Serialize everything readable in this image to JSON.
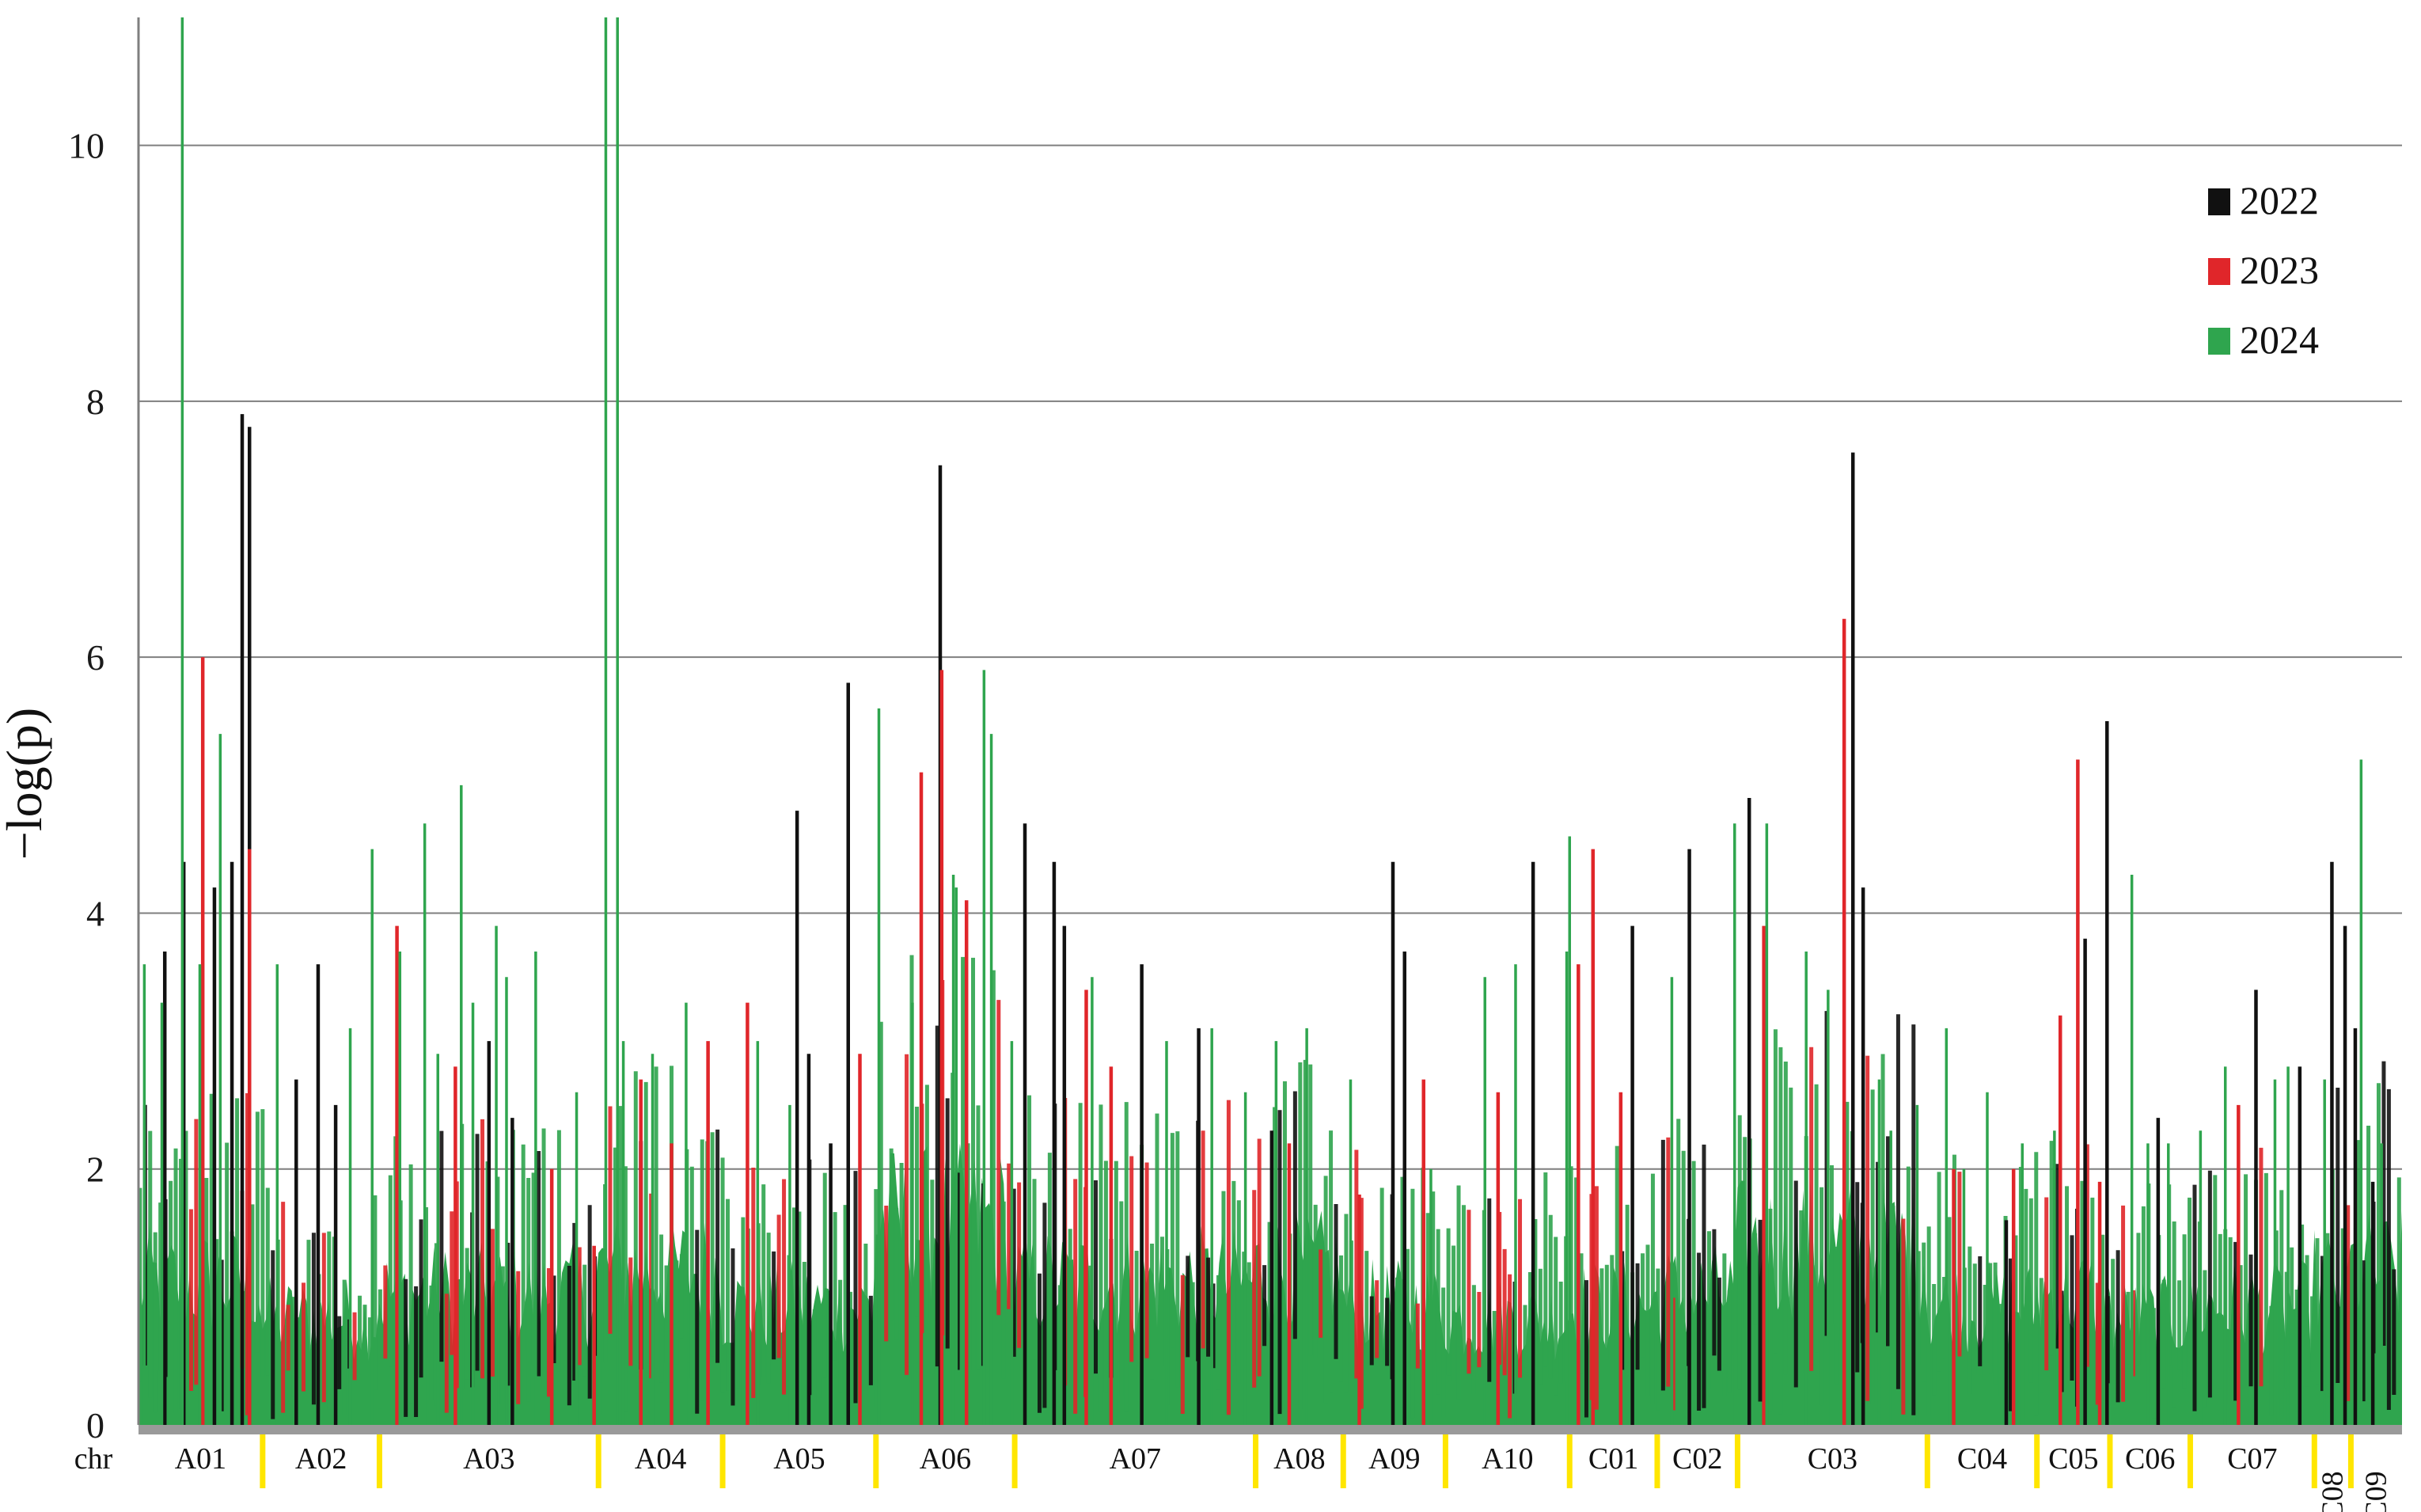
{
  "chart_data": {
    "type": "bar",
    "subtype": "manhattan",
    "title": "",
    "xlabel": "chr",
    "ylabel": "−log(p)",
    "ylim": [
      0,
      11
    ],
    "yticks": [
      0,
      2,
      4,
      6,
      8,
      10
    ],
    "grid": true,
    "legend_position": "top-right",
    "chromosomes": [
      "A01",
      "A02",
      "A03",
      "A04",
      "A05",
      "A06",
      "A07",
      "A08",
      "A09",
      "A10",
      "C01",
      "C02",
      "C03",
      "C04",
      "C05",
      "C06",
      "C07",
      "C08",
      "C09"
    ],
    "chromosome_spans": [
      {
        "chr": "A01",
        "start": 0.0,
        "end": 8.5
      },
      {
        "chr": "A02",
        "start": 8.5,
        "end": 16.5
      },
      {
        "chr": "A03",
        "start": 16.5,
        "end": 31.5
      },
      {
        "chr": "A04",
        "start": 31.5,
        "end": 40.0
      },
      {
        "chr": "A05",
        "start": 40.0,
        "end": 50.5
      },
      {
        "chr": "A06",
        "start": 50.5,
        "end": 60.0
      },
      {
        "chr": "A07",
        "start": 60.0,
        "end": 76.5
      },
      {
        "chr": "A08",
        "start": 76.5,
        "end": 82.5
      },
      {
        "chr": "A09",
        "start": 82.5,
        "end": 89.5
      },
      {
        "chr": "A10",
        "start": 89.5,
        "end": 98.0
      },
      {
        "chr": "C01",
        "start": 98.0,
        "end": 104.0
      },
      {
        "chr": "C02",
        "start": 104.0,
        "end": 109.5
      },
      {
        "chr": "C03",
        "start": 109.5,
        "end": 122.5
      },
      {
        "chr": "C04",
        "start": 122.5,
        "end": 130.0
      },
      {
        "chr": "C05",
        "start": 130.0,
        "end": 135.0
      },
      {
        "chr": "C06",
        "start": 135.0,
        "end": 140.5
      },
      {
        "chr": "C07",
        "start": 140.5,
        "end": 149.0
      },
      {
        "chr": "C08",
        "start": 149.0,
        "end": 151.5
      },
      {
        "chr": "C09",
        "start": 151.5,
        "end": 155.0
      }
    ],
    "series": [
      {
        "name": "2022",
        "color": "#111111",
        "peaks": [
          [
            1.8,
            3.7
          ],
          [
            3.1,
            4.4
          ],
          [
            5.2,
            4.2
          ],
          [
            6.4,
            4.4
          ],
          [
            7.1,
            7.9
          ],
          [
            7.6,
            7.8
          ],
          [
            10.8,
            2.7
          ],
          [
            12.3,
            3.6
          ],
          [
            13.5,
            2.5
          ],
          [
            24.0,
            3.0
          ],
          [
            25.6,
            2.4
          ],
          [
            45.1,
            4.8
          ],
          [
            45.9,
            2.9
          ],
          [
            47.4,
            2.2
          ],
          [
            48.6,
            5.8
          ],
          [
            54.9,
            7.5
          ],
          [
            60.7,
            4.7
          ],
          [
            62.7,
            4.4
          ],
          [
            63.4,
            3.9
          ],
          [
            68.7,
            3.6
          ],
          [
            72.6,
            3.1
          ],
          [
            77.6,
            2.3
          ],
          [
            85.9,
            4.4
          ],
          [
            86.7,
            3.7
          ],
          [
            95.5,
            4.4
          ],
          [
            102.3,
            3.9
          ],
          [
            106.2,
            4.5
          ],
          [
            110.3,
            4.9
          ],
          [
            117.4,
            7.6
          ],
          [
            118.1,
            4.2
          ],
          [
            127.9,
            1.6
          ],
          [
            133.3,
            3.8
          ],
          [
            134.8,
            5.5
          ],
          [
            138.3,
            2.4
          ],
          [
            145.0,
            3.4
          ],
          [
            148.0,
            2.8
          ],
          [
            150.2,
            4.4
          ],
          [
            151.1,
            3.9
          ],
          [
            151.8,
            3.1
          ],
          [
            153.0,
            1.9
          ]
        ]
      },
      {
        "name": "2023",
        "color": "#e0262a",
        "peaks": [
          [
            4.4,
            6.0
          ],
          [
            7.6,
            4.5
          ],
          [
            17.7,
            3.9
          ],
          [
            21.7,
            2.8
          ],
          [
            28.3,
            2.0
          ],
          [
            31.2,
            1.4
          ],
          [
            34.4,
            2.7
          ],
          [
            36.5,
            2.2
          ],
          [
            39.0,
            3.0
          ],
          [
            41.7,
            3.3
          ],
          [
            49.4,
            2.9
          ],
          [
            53.6,
            5.1
          ],
          [
            55.0,
            5.9
          ],
          [
            56.7,
            4.1
          ],
          [
            64.9,
            3.4
          ],
          [
            66.6,
            2.8
          ],
          [
            78.8,
            2.2
          ],
          [
            83.6,
            1.8
          ],
          [
            88.0,
            2.7
          ],
          [
            93.1,
            2.6
          ],
          [
            98.6,
            3.6
          ],
          [
            99.6,
            4.5
          ],
          [
            101.5,
            2.6
          ],
          [
            111.3,
            3.9
          ],
          [
            116.8,
            6.3
          ],
          [
            124.3,
            2.0
          ],
          [
            128.4,
            2.0
          ],
          [
            131.6,
            3.2
          ],
          [
            132.8,
            5.2
          ],
          [
            134.3,
            1.9
          ],
          [
            143.8,
            2.5
          ]
        ]
      },
      {
        "name": "2024",
        "color": "#2fa54e",
        "peaks": [
          [
            0.4,
            3.6
          ],
          [
            1.6,
            3.3
          ],
          [
            3.0,
            11.0
          ],
          [
            4.2,
            3.6
          ],
          [
            5.6,
            5.4
          ],
          [
            9.5,
            3.6
          ],
          [
            14.5,
            3.1
          ],
          [
            16.0,
            4.5
          ],
          [
            17.9,
            3.7
          ],
          [
            19.6,
            4.7
          ],
          [
            20.5,
            2.9
          ],
          [
            22.1,
            5.0
          ],
          [
            22.9,
            3.3
          ],
          [
            24.5,
            3.9
          ],
          [
            25.2,
            3.5
          ],
          [
            27.2,
            3.7
          ],
          [
            30.0,
            2.6
          ],
          [
            32.0,
            11.0
          ],
          [
            32.8,
            11.0
          ],
          [
            33.2,
            3.0
          ],
          [
            35.2,
            2.9
          ],
          [
            37.5,
            3.3
          ],
          [
            42.4,
            3.0
          ],
          [
            44.6,
            2.5
          ],
          [
            50.7,
            5.6
          ],
          [
            53.0,
            3.3
          ],
          [
            55.8,
            4.3
          ],
          [
            56.0,
            4.2
          ],
          [
            57.9,
            5.9
          ],
          [
            58.4,
            5.4
          ],
          [
            59.8,
            3.0
          ],
          [
            65.3,
            3.5
          ],
          [
            70.4,
            3.0
          ],
          [
            73.5,
            3.1
          ],
          [
            75.8,
            2.6
          ],
          [
            77.9,
            3.0
          ],
          [
            80.0,
            3.1
          ],
          [
            83.0,
            2.7
          ],
          [
            88.5,
            2.0
          ],
          [
            92.2,
            3.5
          ],
          [
            94.3,
            3.6
          ],
          [
            97.8,
            3.7
          ],
          [
            98.0,
            4.6
          ],
          [
            105.0,
            3.5
          ],
          [
            109.3,
            4.7
          ],
          [
            111.5,
            4.7
          ],
          [
            114.2,
            3.7
          ],
          [
            115.7,
            3.4
          ],
          [
            119.2,
            2.7
          ],
          [
            120.0,
            2.3
          ],
          [
            121.8,
            2.5
          ],
          [
            123.8,
            3.1
          ],
          [
            125.0,
            2.0
          ],
          [
            126.6,
            2.6
          ],
          [
            129.0,
            2.2
          ],
          [
            131.2,
            2.3
          ],
          [
            136.5,
            4.3
          ],
          [
            137.6,
            2.2
          ],
          [
            139.0,
            2.2
          ],
          [
            141.2,
            2.3
          ],
          [
            142.9,
            2.8
          ],
          [
            146.3,
            2.7
          ],
          [
            147.2,
            2.8
          ],
          [
            149.7,
            2.7
          ],
          [
            152.2,
            5.2
          ],
          [
            153.6,
            2.2
          ]
        ]
      }
    ],
    "dense_baseline": [
      {
        "chr": "A01",
        "typical": 1.2
      },
      {
        "chr": "A02",
        "typical": 0.9
      },
      {
        "chr": "A03",
        "typical": 1.1
      },
      {
        "chr": "A04",
        "typical": 1.3
      },
      {
        "chr": "A05",
        "typical": 1.0
      },
      {
        "chr": "A06",
        "typical": 1.7
      },
      {
        "chr": "A07",
        "typical": 1.2
      },
      {
        "chr": "A08",
        "typical": 1.3
      },
      {
        "chr": "A09",
        "typical": 1.0
      },
      {
        "chr": "A10",
        "typical": 0.9
      },
      {
        "chr": "C01",
        "typical": 1.0
      },
      {
        "chr": "C02",
        "typical": 1.1
      },
      {
        "chr": "C03",
        "typical": 1.5
      },
      {
        "chr": "C04",
        "typical": 1.0
      },
      {
        "chr": "C05",
        "typical": 1.1
      },
      {
        "chr": "C06",
        "typical": 0.9
      },
      {
        "chr": "C07",
        "typical": 1.0
      },
      {
        "chr": "C08",
        "typical": 1.2
      },
      {
        "chr": "C09",
        "typical": 1.3
      }
    ]
  }
}
